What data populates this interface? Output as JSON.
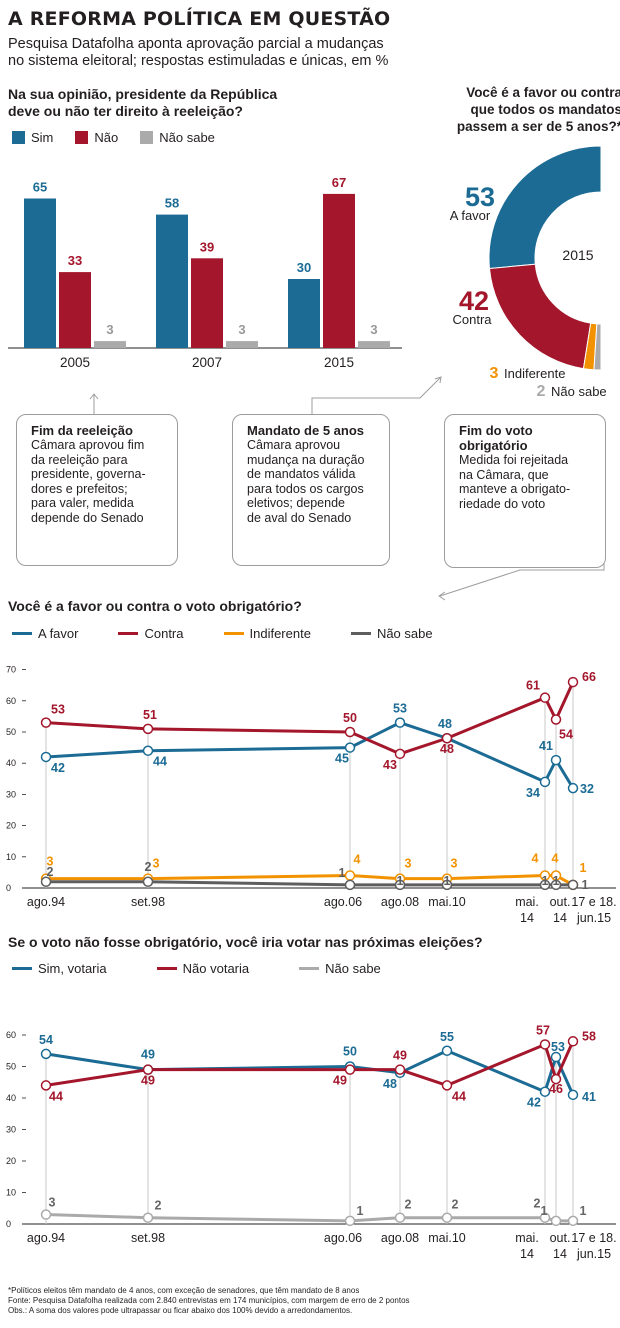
{
  "header": {
    "title": "A REFORMA POLÍTICA EM QUESTÃO",
    "subtitle_line1": "Pesquisa Datafolha aponta aprovação parcial a mudanças",
    "subtitle_line2": "no sistema eleitoral; respostas estimuladas e únicas, em %"
  },
  "colors": {
    "blue": "#1b6b94",
    "red": "#a3162b",
    "orange": "#f39200",
    "darkgray": "#5e5e5e",
    "lightgray": "#aaaaaa"
  },
  "bar_section": {
    "question_line1": "Na sua opinião, presidente da República",
    "question_line2": "deve ou não ter direito à reeleição?",
    "legend": [
      "Sim",
      "Não",
      "Não sabe"
    ]
  },
  "donut_section": {
    "question_line1": "Você é a favor ou contra",
    "question_line2": "que todos os mandatos",
    "question_line3": "passem a ser de 5 anos?*",
    "center_label": "2015",
    "favor_value": "53",
    "favor_label": "A favor",
    "contra_value": "42",
    "contra_label": "Contra",
    "indif_value": "3",
    "indif_label": "Indiferente",
    "naosabe_value": "2",
    "naosabe_label": "Não sabe"
  },
  "callouts": [
    {
      "title": "Fim da reeleição",
      "lines": [
        "Câmara aprovou fim",
        "da reeleição para",
        "presidente, governa-",
        "dores e prefeitos;",
        "para valer, medida",
        "depende do Senado"
      ]
    },
    {
      "title": "Mandato de 5 anos",
      "lines": [
        "Câmara aprovou",
        "mudança na duração",
        "de mandatos válida",
        "para todos os cargos",
        "eletivos; depende",
        "de aval do Senado"
      ]
    },
    {
      "title_line1": "Fim do voto",
      "title_line2": "obrigatório",
      "lines": [
        "Medida foi rejeitada",
        "na Câmara, que",
        "manteve a obrigato-",
        "riedade do voto"
      ]
    }
  ],
  "line1_section": {
    "question": "Você é a favor ou contra o voto obrigatório?",
    "legend": [
      "A favor",
      "Contra",
      "Indiferente",
      "Não sabe"
    ]
  },
  "line2_section": {
    "question": "Se o voto não fosse obrigatório, você iria votar nas próximas eleições?",
    "legend": [
      "Sim, votaria",
      "Não votaria",
      "Não sabe"
    ]
  },
  "chart_data": [
    {
      "type": "bar",
      "categories": [
        "2005",
        "2007",
        "2015"
      ],
      "series": [
        {
          "name": "Sim",
          "values": [
            65,
            58,
            30
          ]
        },
        {
          "name": "Não",
          "values": [
            33,
            39,
            67
          ]
        },
        {
          "name": "Não sabe",
          "values": [
            3,
            3,
            3
          ]
        }
      ]
    },
    {
      "type": "pie",
      "title": "2015",
      "slices": [
        {
          "name": "A favor",
          "value": 53
        },
        {
          "name": "Contra",
          "value": 42
        },
        {
          "name": "Indiferente",
          "value": 3
        },
        {
          "name": "Não sabe",
          "value": 2
        }
      ]
    },
    {
      "type": "line",
      "x": [
        "ago.94",
        "set.98",
        "ago.06",
        "ago.08",
        "mai.10",
        "mai. 14",
        "out. 14",
        "17 e 18. jun.15"
      ],
      "ylim": [
        0,
        70
      ],
      "yticks": [
        0,
        10,
        20,
        30,
        40,
        50,
        60,
        70
      ],
      "series": [
        {
          "name": "A favor",
          "values": [
            42,
            44,
            45,
            53,
            48,
            34,
            41,
            32
          ]
        },
        {
          "name": "Contra",
          "values": [
            53,
            51,
            50,
            43,
            48,
            61,
            54,
            66
          ]
        },
        {
          "name": "Indiferente",
          "values": [
            3,
            3,
            4,
            3,
            3,
            4,
            4,
            1
          ]
        },
        {
          "name": "Não sabe",
          "values": [
            2,
            2,
            1,
            1,
            1,
            1,
            1,
            1
          ]
        }
      ]
    },
    {
      "type": "line",
      "x": [
        "ago.94",
        "set.98",
        "ago.06",
        "ago.08",
        "mai.10",
        "mai. 14",
        "out. 14",
        "17 e 18. jun.15"
      ],
      "ylim": [
        0,
        60
      ],
      "yticks": [
        0,
        10,
        20,
        30,
        40,
        50,
        60
      ],
      "series": [
        {
          "name": "Sim, votaria",
          "values": [
            54,
            49,
            50,
            48,
            55,
            42,
            53,
            41
          ]
        },
        {
          "name": "Não votaria",
          "values": [
            44,
            49,
            49,
            49,
            44,
            57,
            46,
            58
          ]
        },
        {
          "name": "Não sabe",
          "values": [
            3,
            2,
            1,
            2,
            2,
            2,
            1,
            1
          ]
        }
      ]
    }
  ],
  "footnote": {
    "line1": "*Políticos eleitos têm mandato de 4 anos, com exceção de senadores, que têm mandato de 8 anos",
    "line2": "Fonte: Pesquisa Datafolha realizada com 2.840 entrevistas em 174 municípios, com margem de erro de 2 pontos",
    "line3": "Obs.: A soma dos valores pode ultrapassar ou ficar abaixo dos 100% devido a arredondamentos."
  }
}
